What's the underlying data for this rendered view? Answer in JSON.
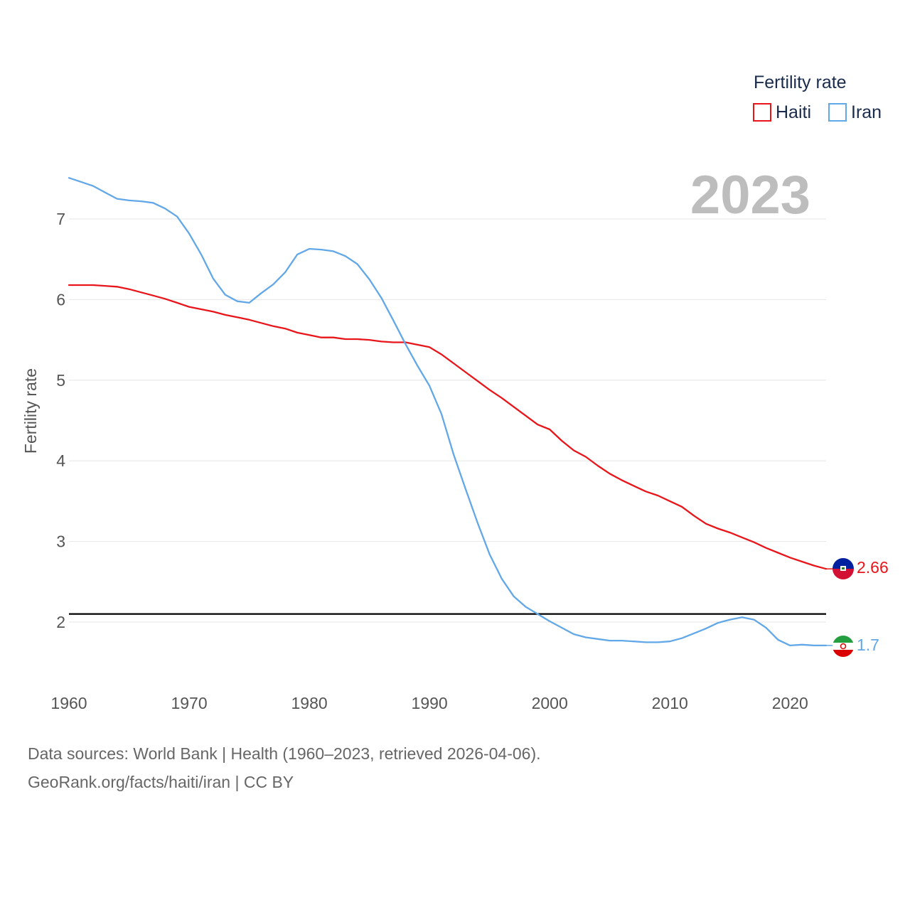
{
  "chart_data": {
    "type": "line",
    "title": "",
    "legend_title": "Fertility rate",
    "ylabel": "Fertility rate",
    "xlabel": "",
    "current_year": "2023",
    "xlim": [
      1960,
      2023
    ],
    "ylim": [
      1.5,
      7.6
    ],
    "x_ticks": [
      "1960",
      "1970",
      "1980",
      "1990",
      "2000",
      "2010",
      "2020"
    ],
    "y_ticks": [
      "2",
      "3",
      "4",
      "5",
      "6",
      "7"
    ],
    "reference_line": {
      "y": 2.1,
      "color": "#000000"
    },
    "years": [
      1960,
      1961,
      1962,
      1963,
      1964,
      1965,
      1966,
      1967,
      1968,
      1969,
      1970,
      1971,
      1972,
      1973,
      1974,
      1975,
      1976,
      1977,
      1978,
      1979,
      1980,
      1981,
      1982,
      1983,
      1984,
      1985,
      1986,
      1987,
      1988,
      1989,
      1990,
      1991,
      1992,
      1993,
      1994,
      1995,
      1996,
      1997,
      1998,
      1999,
      2000,
      2001,
      2002,
      2003,
      2004,
      2005,
      2006,
      2007,
      2008,
      2009,
      2010,
      2011,
      2012,
      2013,
      2014,
      2015,
      2016,
      2017,
      2018,
      2019,
      2020,
      2021,
      2022,
      2023
    ],
    "series": [
      {
        "name": "Haiti",
        "color": "#e8151a",
        "end_label": "2.66",
        "values": [
          6.18,
          6.18,
          6.18,
          6.17,
          6.16,
          6.13,
          6.09,
          6.05,
          6.01,
          5.96,
          5.91,
          5.88,
          5.85,
          5.81,
          5.78,
          5.75,
          5.71,
          5.67,
          5.64,
          5.59,
          5.56,
          5.53,
          5.53,
          5.51,
          5.51,
          5.5,
          5.48,
          5.47,
          5.47,
          5.44,
          5.41,
          5.32,
          5.21,
          5.1,
          4.99,
          4.88,
          4.78,
          4.67,
          4.56,
          4.45,
          4.39,
          4.25,
          4.13,
          4.05,
          3.94,
          3.84,
          3.76,
          3.69,
          3.62,
          3.57,
          3.5,
          3.43,
          3.32,
          3.22,
          3.16,
          3.11,
          3.05,
          2.99,
          2.92,
          2.86,
          2.8,
          2.75,
          2.7,
          2.66
        ]
      },
      {
        "name": "Iran",
        "color": "#62a8e8",
        "end_label": "1.7",
        "values": [
          7.51,
          7.46,
          7.41,
          7.33,
          7.25,
          7.23,
          7.22,
          7.2,
          7.13,
          7.03,
          6.82,
          6.56,
          6.26,
          6.06,
          5.98,
          5.96,
          6.08,
          6.19,
          6.34,
          6.56,
          6.63,
          6.62,
          6.6,
          6.54,
          6.44,
          6.25,
          6.02,
          5.74,
          5.45,
          5.18,
          4.93,
          4.58,
          4.08,
          3.65,
          3.23,
          2.84,
          2.54,
          2.32,
          2.19,
          2.1,
          2.01,
          1.93,
          1.85,
          1.81,
          1.79,
          1.77,
          1.77,
          1.76,
          1.75,
          1.75,
          1.76,
          1.8,
          1.86,
          1.92,
          1.99,
          2.03,
          2.06,
          2.03,
          1.93,
          1.78,
          1.71,
          1.72,
          1.71,
          1.71
        ]
      }
    ]
  },
  "source": {
    "line1": "Data sources: World Bank | Health (1960–2023, retrieved 2026-04-06).",
    "line2": "GeoRank.org/facts/haiti/iran | CC BY"
  },
  "flags": {
    "haiti_icon": "haiti-flag-icon",
    "iran_icon": "iran-flag-icon",
    "haiti_colors": [
      "#00209f",
      "#d21034",
      "#ffffff"
    ],
    "iran_colors": [
      "#239f40",
      "#ffffff",
      "#da0000"
    ]
  },
  "style": {
    "grid_color": "#e6e6e6"
  }
}
